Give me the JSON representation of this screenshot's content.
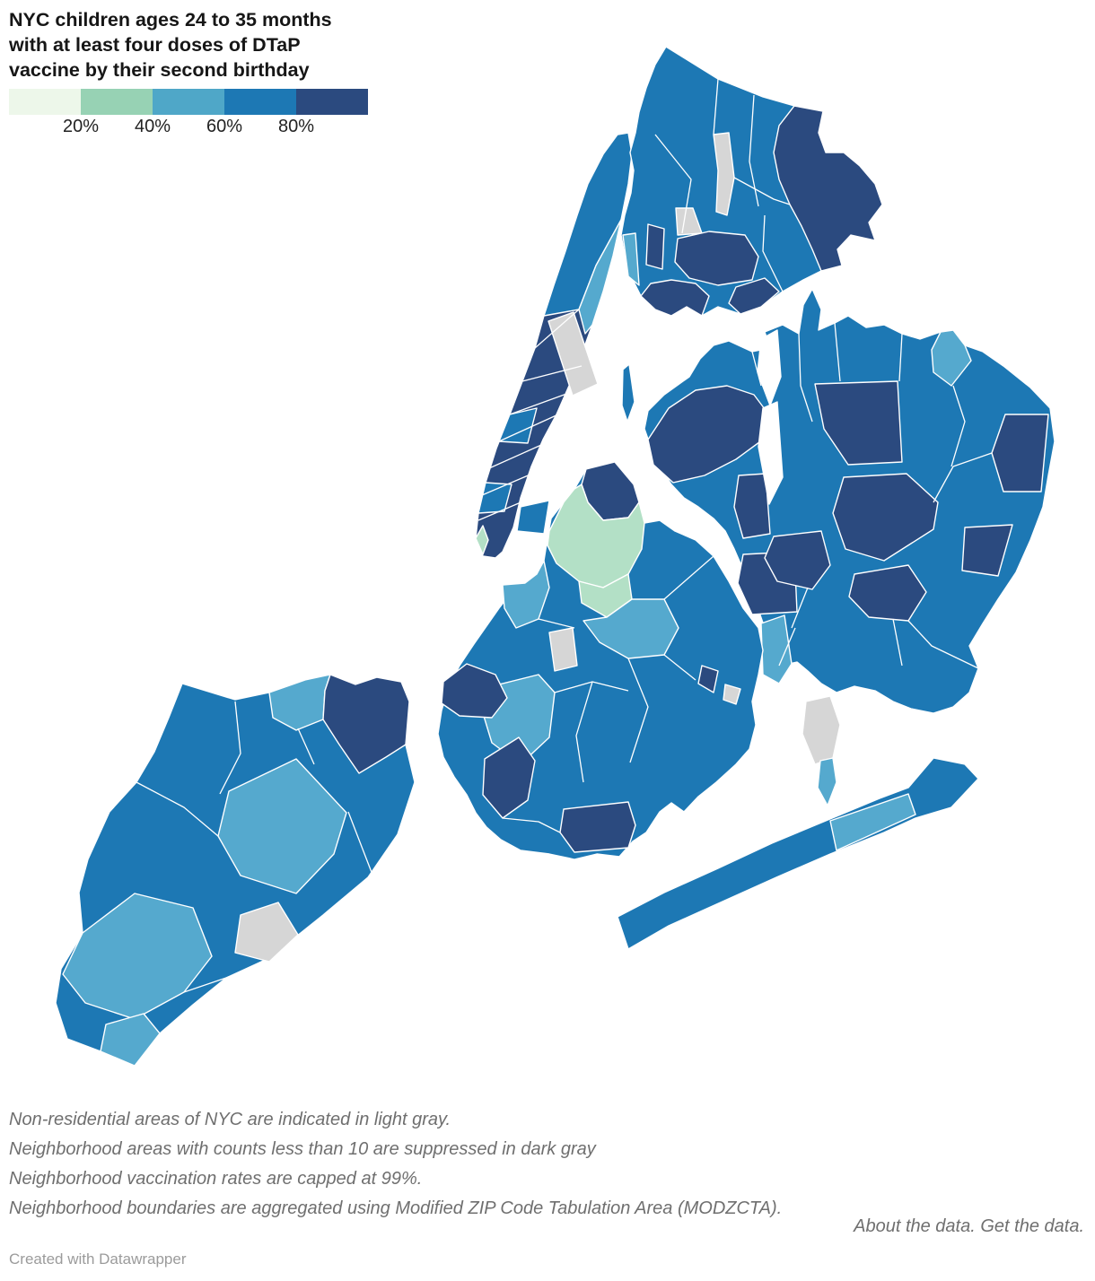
{
  "title": {
    "line1": "NYC children ages 24 to 35 months",
    "line2": "with at least four doses of DTaP",
    "line3": "vaccine by their second birthday"
  },
  "legend": {
    "swatches": [
      "#edf7ea",
      "#97d2b4",
      "#4fa7c8",
      "#1d78b4",
      "#2b4a7f"
    ],
    "ticks": [
      "20%",
      "40%",
      "60%",
      "80%"
    ]
  },
  "notes": {
    "lines": [
      "Non-residential areas of NYC are indicated in light gray.",
      "Neighborhood areas with counts less than 10 are suppressed in dark gray",
      "Neighborhood vaccination rates are capped at 99%.",
      "Neighborhood boundaries are aggregated using Modified ZIP Code Tabulation Area (MODZCTA)."
    ]
  },
  "links": {
    "about": "About the data.",
    "get": "Get the data."
  },
  "credit": "Created with Datawrapper",
  "map": {
    "palette": {
      "p1": "#edf7ea",
      "p2": "#97d2b4",
      "p3": "#55a9ce",
      "p4": "#1d78b4",
      "p5": "#2b4a7f",
      "mint": "#b3e0c6",
      "gray": "#d6d6d6",
      "water": "#ffffff"
    },
    "regions": [
      {
        "n": "staten-island-base",
        "c": "p4",
        "p": "203,762 262,780 300,772 340,758 368,752 396,763 420,755 447,760 456,782 452,830 462,872 443,930 410,978 360,1020 300,1068 252,1090 215,1120 178,1152 150,1188 112,1172 75,1158 62,1118 68,1080 92,1040 88,995 98,958 122,905 152,872 172,838 188,800"
      },
      {
        "n": "staten-island-north",
        "c": "p3",
        "p": "300,772 340,758 368,752 362,770 360,802 330,814 304,800"
      },
      {
        "n": "staten-island-northeast",
        "c": "p5",
        "p": "368,752 396,763 420,755 447,760 456,782 452,830 430,844 400,862 378,830 360,802 362,770"
      },
      {
        "n": "staten-island-central",
        "c": "p3",
        "p": "255,882 330,846 386,906 372,952 330,996 268,976 243,932"
      },
      {
        "n": "staten-island-southwest",
        "c": "p3",
        "p": "92,1040 150,996 215,1012 236,1066 205,1106 150,1136 95,1118 70,1086"
      },
      {
        "n": "staten-island-south-tip",
        "c": "p3",
        "p": "112,1172 150,1188 178,1152 160,1130 118,1142"
      },
      {
        "n": "staten-island-park",
        "c": "gray",
        "p": "268,1020 310,1006 332,1042 300,1072 262,1062"
      },
      {
        "n": "manhattan-base",
        "c": "p5",
        "p": "700,148 704,172 700,205 692,245 683,285 672,325 660,362 648,395 634,430 620,462 605,490 592,520 580,555 572,588 560,615 552,622 538,620 530,600 533,572 541,538 553,500 568,462 582,425 596,388 606,352 617,318 630,280 643,240 655,205 672,172 688,150"
      },
      {
        "n": "manhattan-uptown",
        "c": "p4",
        "p": "688,150 700,148 704,172 700,205 692,245 664,296 645,345 606,352 617,318 630,280 643,240 655,205 672,172"
      },
      {
        "n": "manhattan-east-harlem",
        "c": "p3",
        "p": "645,345 664,296 692,245 683,285 672,325 660,362 652,372"
      },
      {
        "n": "manhattan-midtown-west",
        "c": "p4",
        "p": "556,492 568,462 598,455 588,494"
      },
      {
        "n": "manhattan-west-village",
        "c": "p4",
        "p": "533,572 541,538 570,540 562,570"
      },
      {
        "n": "manhattan-lower-east-side",
        "c": "p4",
        "p": "576,592 580,565 612,558 606,595"
      },
      {
        "n": "manhattan-battery-park",
        "c": "mint",
        "p": "530,600 538,586 544,602 538,618"
      },
      {
        "n": "central-park",
        "c": "gray",
        "p": "611,358 639,348 666,428 638,441"
      },
      {
        "n": "roosevelt-island",
        "c": "p4",
        "p": "693,452 694,412 701,406 707,448 699,470"
      },
      {
        "n": "bronx-base",
        "c": "p4",
        "p": "742,52 800,88 850,108 885,118 917,124 912,148 920,170 940,170 958,185 975,205 983,228 968,248 975,268 948,262 933,278 938,296 915,302 895,312 872,325 848,342 825,350 800,342 782,352 765,342 748,352 730,345 714,330 703,308 696,285 692,262 696,240 703,215 706,190 702,170 708,148 712,125 720,98 730,72"
      },
      {
        "n": "bronx-northeast",
        "c": "p5",
        "p": "868,140 885,118 917,124 912,148 920,170 940,170 958,185 975,205 983,228 968,248 975,268 948,262 933,278 938,296 915,302 905,278 893,252 880,228 868,200 862,170"
      },
      {
        "n": "bronx-park",
        "c": "gray",
        "p": "795,150 812,148 818,198 810,240 798,236 800,190"
      },
      {
        "n": "bronx-small-park",
        "c": "gray",
        "p": "753,232 772,232 782,260 755,262"
      },
      {
        "n": "bronx-central",
        "c": "p5",
        "p": "752,292 755,266 790,258 830,262 845,286 838,312 800,318 768,310"
      },
      {
        "n": "bronx-south",
        "c": "p5",
        "p": "714,330 725,316 748,312 775,316 790,330 782,352 765,342 748,352 730,345"
      },
      {
        "n": "bronx-west",
        "c": "p5",
        "p": "720,295 722,250 740,255 738,300"
      },
      {
        "n": "bronx-harlem-river-edge",
        "c": "p3",
        "p": "694,262 708,260 712,318 700,308"
      },
      {
        "n": "bronx-soundview",
        "c": "p5",
        "p": "812,338 820,320 852,310 868,325 848,342 825,350"
      },
      {
        "n": "queens-base",
        "c": "p4",
        "p": "722,458 740,440 768,420 780,400 795,385 812,380 838,392 858,388 852,370 872,362 890,372 895,340 905,322 915,345 912,368 930,360 945,352 965,365 985,362 1005,372 1025,378 1048,370 1062,368 1075,385 1095,392 1118,408 1148,432 1170,455 1175,492 1168,530 1162,565 1148,602 1132,638 1112,668 1095,695 1080,720 1090,745 1080,772 1062,788 1040,795 1015,790 995,782 975,770 952,765 932,772 915,762 900,748 888,738 870,742 855,750 848,725 852,700 845,680 835,660 828,635 818,612 808,592 795,578 778,565 762,555 748,540 735,520 725,498 718,478"
      },
      {
        "n": "queens-west",
        "c": "p5",
        "p": "722,490 745,455 775,435 810,430 840,440 855,460 850,490 820,512 785,530 750,538 728,518"
      },
      {
        "n": "queens-middle-village",
        "c": "p5",
        "p": "818,565 823,530 853,528 858,595 828,600"
      },
      {
        "n": "queens-glendale",
        "c": "p5",
        "p": "822,650 828,618 885,615 888,682 838,685"
      },
      {
        "n": "queens-fresh-meadows",
        "c": "p5",
        "p": "908,428 1000,425 1005,515 945,518 918,478"
      },
      {
        "n": "queens-jamaica",
        "c": "p5",
        "p": "928,572 940,532 1010,528 1045,560 1040,590 985,625 942,612"
      },
      {
        "n": "queens-st-albans",
        "c": "p5",
        "p": "946,665 952,640 1012,630 1032,660 1012,692 968,688"
      },
      {
        "n": "queens-bellerose",
        "c": "p5",
        "p": "1105,505 1120,462 1168,462 1160,548 1118,548"
      },
      {
        "n": "queens-southeast",
        "c": "p5",
        "p": "1072,636 1075,588 1128,585 1112,642"
      },
      {
        "n": "queens-richmond-hill",
        "c": "p5",
        "p": "852,622 862,598 915,592 925,630 905,657 866,648"
      },
      {
        "n": "queens-douglaston",
        "c": "p3",
        "p": "1038,390 1048,370 1062,368 1075,385 1082,402 1060,430 1040,415"
      },
      {
        "n": "queens-ozone-park",
        "c": "p3",
        "p": "848,695 874,686 882,740 868,762 850,752"
      },
      {
        "n": "flushing-bay",
        "c": "water",
        "p": "844,415 848,378 866,368 870,420 858,452"
      },
      {
        "n": "flushing-meadows",
        "c": "water",
        "p": "845,498 850,455 866,448 872,532 857,562"
      },
      {
        "n": "jfk-airport",
        "c": "gray",
        "p": "894,818 898,782 925,776 936,808 928,845 908,852"
      },
      {
        "n": "broad-channel",
        "c": "p3",
        "p": "911,878 914,848 928,845 932,872 922,898"
      },
      {
        "n": "rockaway-base",
        "c": "p4",
        "p": "688,1022 740,995 800,968 860,940 920,915 980,890 1012,878 1040,845 1075,852 1090,868 1060,900 1020,912 985,928 925,952 865,978 805,1005 745,1032 700,1058"
      },
      {
        "n": "rockaway-central",
        "c": "p3",
        "p": "925,915 1012,885 1020,908 932,948"
      },
      {
        "n": "brooklyn-base",
        "c": "p4",
        "p": "653,523 685,515 706,540 718,583 735,580 752,592 775,602 795,620 812,648 828,678 845,700 850,725 845,752 838,782 842,808 835,835 820,852 798,872 778,888 762,905 748,895 735,905 720,928 705,938 690,955 665,952 640,958 612,952 580,948 558,936 542,922 530,906 520,886 506,866 494,844 488,818 492,792 500,765 512,742 528,718 542,698 556,678 570,660 585,650 598,640 606,625 610,600 614,578 628,560 640,545"
      },
      {
        "n": "brooklyn-greenpoint",
        "c": "p5",
        "p": "648,540 653,523 685,515 706,540 712,560 700,577 672,580 655,560"
      },
      {
        "n": "brooklyn-williamsburg",
        "c": "mint",
        "p": "610,608 612,592 628,560 640,545 648,540 655,560 672,580 700,577 712,560 718,583 715,612 700,640 672,655 645,648 620,628"
      },
      {
        "n": "brooklyn-south-williamsburg",
        "c": "mint",
        "p": "648,672 645,648 672,655 700,640 704,668 676,688"
      },
      {
        "n": "brooklyn-bed-stuy",
        "c": "p3",
        "p": "650,692 676,688 704,668 740,668 756,700 740,730 700,734 668,716"
      },
      {
        "n": "brooklyn-downtown",
        "c": "p3",
        "p": "562,678 560,652 585,650 598,640 606,625 612,655 600,690 575,700"
      },
      {
        "n": "green-wood-cemetery",
        "c": "gray",
        "p": "612,705 638,700 643,742 618,748"
      },
      {
        "n": "brooklyn-borough-park",
        "c": "p3",
        "p": "538,795 548,765 600,752 618,772 612,822 580,852 548,828"
      },
      {
        "n": "brooklyn-bay-ridge",
        "c": "p5",
        "p": "492,784 494,760 520,740 552,752 565,778 548,800 512,798"
      },
      {
        "n": "brooklyn-bensonhurst",
        "c": "p5",
        "p": "538,886 540,846 578,822 596,848 588,892 560,912"
      },
      {
        "n": "brooklyn-gravesend",
        "c": "p5",
        "p": "624,928 628,902 700,894 708,920 700,945 640,950"
      },
      {
        "n": "brooklyn-east-small",
        "c": "p5",
        "p": "778,762 782,742 800,748 795,772"
      },
      {
        "n": "brooklyn-park-small",
        "c": "gray",
        "p": "806,780 808,763 825,768 820,785"
      }
    ],
    "boundaries": [
      "556,492 622,462",
      "545,522 612,492",
      "537,552 600,525",
      "533,580 585,558",
      "596,388 645,345",
      "582,425 648,408",
      "568,462 634,438",
      "730,150 770,200 760,260",
      "800,88 795,150",
      "818,198 862,222 880,228",
      "840,106 835,180 845,230",
      "852,240 850,280 872,325",
      "838,392 848,430",
      "890,372 892,430 905,470",
      "930,360 936,425",
      "1005,372 1002,425",
      "1062,430 1075,470 1060,520",
      "1105,505 1062,520 1040,560",
      "900,655 882,700",
      "995,690 1005,742",
      "1090,745 1038,720 1012,692",
      "868,742 886,700",
      "618,772 660,760 700,770",
      "700,734 722,788 702,850",
      "740,730 775,758",
      "660,760 642,820 650,872",
      "560,912 600,916 624,928",
      "740,668 772,640 795,620",
      "600,690 640,700",
      "332,812 350,852",
      "262,782 268,840 245,885",
      "388,905 415,975",
      "152,872 205,900 243,932",
      "205,1106 252,1090"
    ]
  }
}
